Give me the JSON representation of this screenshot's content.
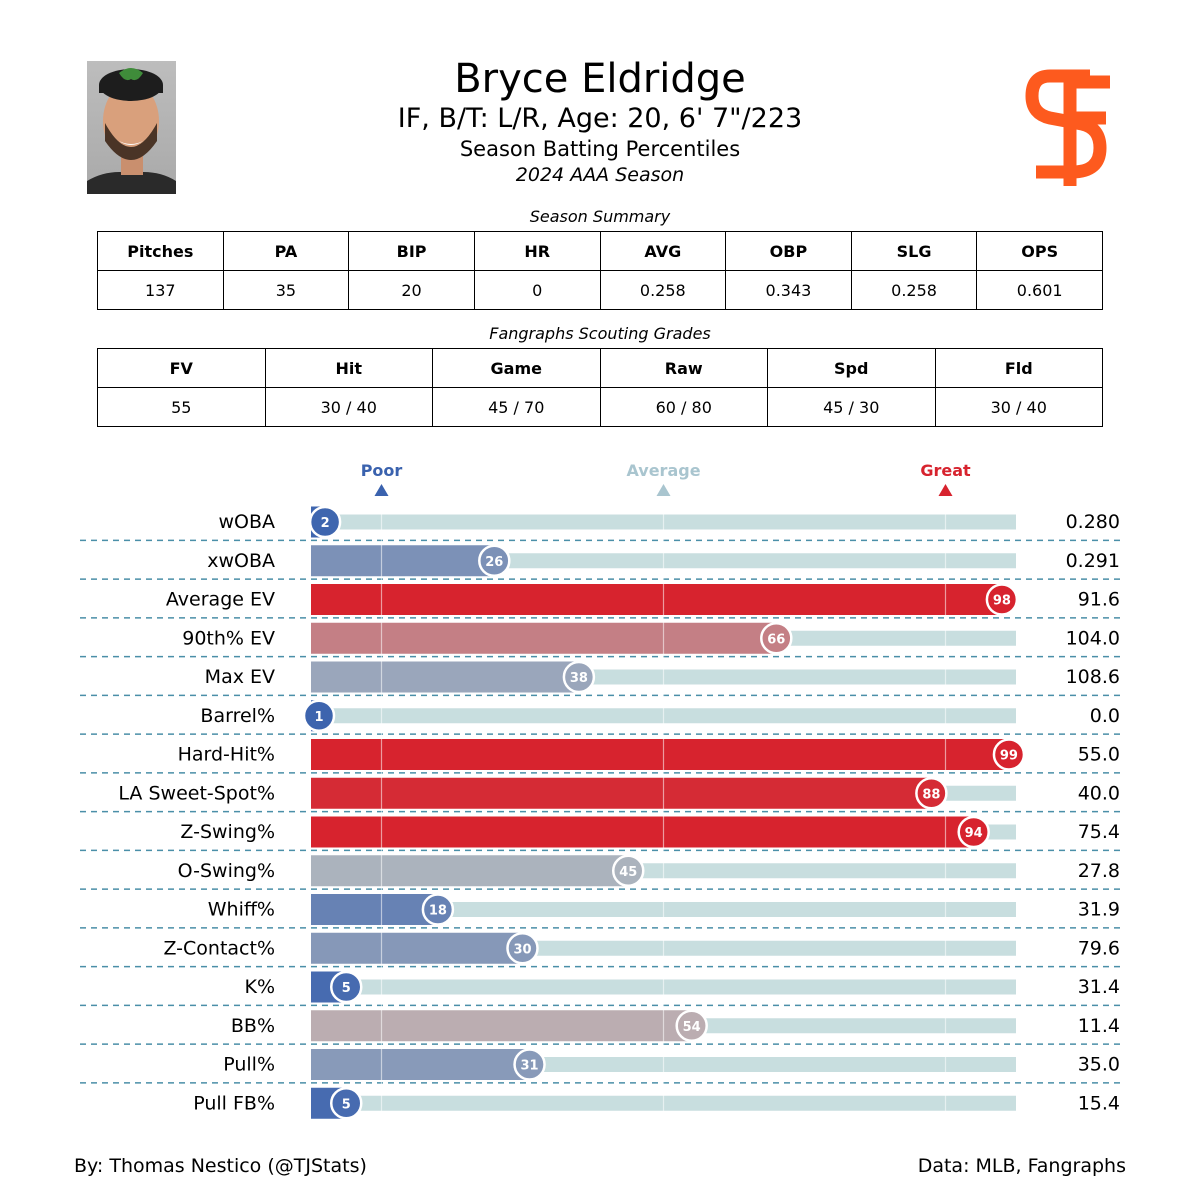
{
  "header": {
    "name": "Bryce Eldridge",
    "bio": "IF, B/T: L/R, Age: 20, 6' 7\"/223",
    "subtitle": "Season Batting Percentiles",
    "season": "2024 AAA Season"
  },
  "season_summary": {
    "caption": "Season Summary",
    "headers": [
      "Pitches",
      "PA",
      "BIP",
      "HR",
      "AVG",
      "OBP",
      "SLG",
      "OPS"
    ],
    "values": [
      "137",
      "35",
      "20",
      "0",
      "0.258",
      "0.343",
      "0.258",
      "0.601"
    ]
  },
  "scouting": {
    "caption": "Fangraphs Scouting Grades",
    "headers": [
      "FV",
      "Hit",
      "Game",
      "Raw",
      "Spd",
      "Fld"
    ],
    "values": [
      "55",
      "30 / 40",
      "45 / 70",
      "60 / 80",
      "45 / 30",
      "30 / 40"
    ]
  },
  "chart_data": {
    "type": "bar",
    "orientation": "horizontal",
    "xlim": [
      0,
      100
    ],
    "markers": [
      {
        "label": "Poor",
        "value": 10,
        "color": "#3A62AE"
      },
      {
        "label": "Average",
        "value": 50,
        "color": "#A9C5CF"
      },
      {
        "label": "Great",
        "value": 90,
        "color": "#D7232E"
      }
    ],
    "colors": {
      "track": "#C8DEDF",
      "poor": "#3A62AE",
      "average": "#B8BCBF",
      "great": "#D7232E"
    },
    "categories": [
      "wOBA",
      "xwOBA",
      "Average EV",
      "90th% EV",
      "Max EV",
      "Barrel%",
      "Hard-Hit%",
      "LA Sweet-Spot%",
      "Z-Swing%",
      "O-Swing%",
      "Whiff%",
      "Z-Contact%",
      "K%",
      "BB%",
      "Pull%",
      "Pull FB%"
    ],
    "percentiles": [
      2,
      26,
      98,
      66,
      38,
      1,
      99,
      88,
      94,
      45,
      18,
      30,
      5,
      54,
      31,
      5
    ],
    "stat_values": [
      "0.280",
      "0.291",
      "91.6",
      "104.0",
      "108.6",
      "0.0",
      "55.0",
      "40.0",
      "75.4",
      "27.8",
      "31.9",
      "79.6",
      "31.4",
      "11.4",
      "35.0",
      "15.4"
    ]
  },
  "footer": {
    "left": "By: Thomas Nestico (@TJStats)",
    "right": "Data: MLB, Fangraphs"
  }
}
